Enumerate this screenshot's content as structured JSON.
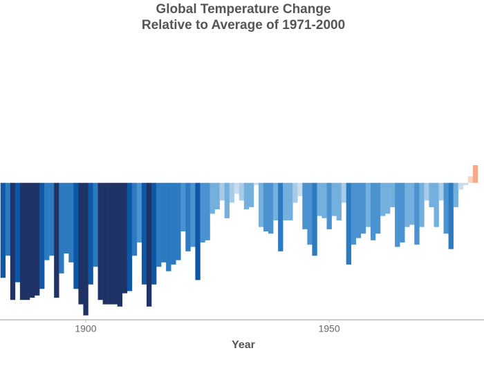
{
  "chart_data": {
    "type": "bar",
    "title": "Global Temperature Change",
    "subtitle": "Relative to Average of 1971-2000",
    "x_label": "Year",
    "x": [
      1883,
      1884,
      1885,
      1886,
      1887,
      1888,
      1889,
      1890,
      1891,
      1892,
      1893,
      1894,
      1895,
      1896,
      1897,
      1898,
      1899,
      1900,
      1901,
      1902,
      1903,
      1904,
      1905,
      1906,
      1907,
      1908,
      1909,
      1910,
      1911,
      1912,
      1913,
      1914,
      1915,
      1916,
      1917,
      1918,
      1919,
      1920,
      1921,
      1922,
      1923,
      1924,
      1925,
      1926,
      1927,
      1928,
      1929,
      1930,
      1931,
      1932,
      1933,
      1934,
      1935,
      1936,
      1937,
      1938,
      1939,
      1940,
      1941,
      1942,
      1943,
      1944,
      1945,
      1946,
      1947,
      1948,
      1949,
      1950,
      1951,
      1952,
      1953,
      1954,
      1955,
      1956,
      1957,
      1958,
      1959,
      1960,
      1961,
      1962,
      1963,
      1964,
      1965,
      1966,
      1967,
      1968,
      1969,
      1970,
      1971,
      1972,
      1973,
      1974,
      1975,
      1976,
      1977,
      1978,
      1979,
      1980
    ],
    "values": [
      -0.43,
      -0.33,
      -0.53,
      -0.45,
      -0.53,
      -0.53,
      -0.52,
      -0.51,
      -0.48,
      -0.35,
      -0.33,
      -0.52,
      -0.41,
      -0.32,
      -0.36,
      -0.48,
      -0.55,
      -0.6,
      -0.46,
      -0.38,
      -0.53,
      -0.55,
      -0.55,
      -0.55,
      -0.56,
      -0.5,
      -0.49,
      -0.33,
      -0.27,
      -0.46,
      -0.56,
      -0.46,
      -0.38,
      -0.36,
      -0.4,
      -0.37,
      -0.35,
      -0.22,
      -0.31,
      -0.29,
      -0.44,
      -0.27,
      -0.26,
      -0.14,
      -0.12,
      -0.08,
      -0.16,
      -0.09,
      -0.05,
      -0.08,
      -0.12,
      -0.11,
      -0.01,
      -0.2,
      -0.22,
      -0.23,
      -0.17,
      -0.31,
      -0.17,
      -0.17,
      -0.09,
      -0.06,
      -0.21,
      -0.28,
      -0.33,
      -0.15,
      -0.16,
      -0.21,
      -0.15,
      -0.17,
      -0.09,
      -0.37,
      -0.28,
      -0.25,
      -0.23,
      -0.2,
      -0.26,
      -0.23,
      -0.15,
      -0.14,
      -0.11,
      -0.29,
      -0.27,
      -0.2,
      -0.19,
      -0.28,
      -0.2,
      -0.08,
      -0.11,
      -0.2,
      -0.08,
      -0.23,
      -0.3,
      -0.11,
      -0.03,
      -0.01,
      0.03,
      0.08
    ],
    "colors": [
      "#0e56a6",
      "#2c7bc1",
      "#1f3366",
      "#0e56a6",
      "#1f3366",
      "#1f3366",
      "#1f3366",
      "#1f3366",
      "#0e56a6",
      "#2c7bc1",
      "#2c7bc1",
      "#1f3366",
      "#2c7bc1",
      "#2c7bc1",
      "#2c7bc1",
      "#0e56a6",
      "#1f3366",
      "#1f3366",
      "#0e56a6",
      "#2c7bc1",
      "#1f3366",
      "#1f3366",
      "#1f3366",
      "#1f3366",
      "#1f3366",
      "#1f3366",
      "#0e56a6",
      "#2c7bc1",
      "#4b93d0",
      "#0e56a6",
      "#1f3366",
      "#0e56a6",
      "#2c7bc1",
      "#2c7bc1",
      "#2c7bc1",
      "#2c7bc1",
      "#2c7bc1",
      "#4b93d0",
      "#2c7bc1",
      "#4b93d0",
      "#0e56a6",
      "#4b93d0",
      "#4b93d0",
      "#73b0de",
      "#73b0de",
      "#a8cbe8",
      "#73b0de",
      "#a8cbe8",
      "#c7dcef",
      "#a8cbe8",
      "#73b0de",
      "#73b0de",
      "#c7dcef",
      "#73b0de",
      "#4b93d0",
      "#4b93d0",
      "#73b0de",
      "#2c7bc1",
      "#73b0de",
      "#73b0de",
      "#a8cbe8",
      "#c7dcef",
      "#4b93d0",
      "#4b93d0",
      "#2c7bc1",
      "#73b0de",
      "#73b0de",
      "#4b93d0",
      "#73b0de",
      "#73b0de",
      "#a8cbe8",
      "#2c7bc1",
      "#4b93d0",
      "#4b93d0",
      "#4b93d0",
      "#73b0de",
      "#4b93d0",
      "#4b93d0",
      "#73b0de",
      "#73b0de",
      "#73b0de",
      "#4b93d0",
      "#4b93d0",
      "#73b0de",
      "#73b0de",
      "#4b93d0",
      "#73b0de",
      "#a8cbe8",
      "#73b0de",
      "#73b0de",
      "#a8cbe8",
      "#4b93d0",
      "#2c7bc1",
      "#73b0de",
      "#c7dcef",
      "#c7dcef",
      "#f9d3c2",
      "#f4aa8c"
    ],
    "xlim": [
      1882.4,
      1981.8
    ],
    "xticks": [
      1900,
      1950
    ],
    "ylim": [
      -0.62,
      0.64
    ],
    "axis_color": "#bbbbbb"
  }
}
